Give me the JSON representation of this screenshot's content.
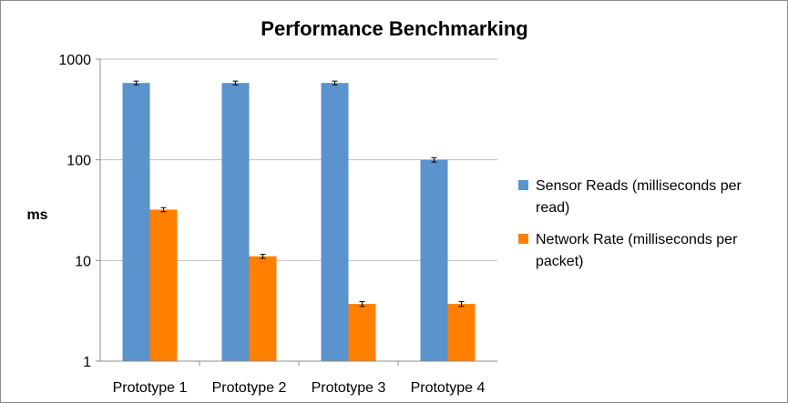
{
  "chart_data": {
    "type": "bar",
    "title": "Performance Benchmarking",
    "xlabel": "",
    "ylabel": "ms",
    "y_scale": "log",
    "ylim": [
      1,
      1000
    ],
    "yticks": [
      "1",
      "10",
      "100",
      "1000"
    ],
    "categories": [
      "Prototype 1",
      "Prototype 2",
      "Prototype 3",
      "Prototype 4"
    ],
    "series": [
      {
        "name": "Sensor Reads (milliseconds per read)",
        "legend_lines": [
          "Sensor Reads (milliseconds per",
          "read)"
        ],
        "color": "#5b93cd",
        "values": [
          580,
          580,
          580,
          100
        ],
        "error": [
          25,
          25,
          25,
          5
        ]
      },
      {
        "name": "Network Rate (milliseconds per packet)",
        "legend_lines": [
          "Network Rate (milliseconds per",
          "packet)"
        ],
        "color": "#ff7f00",
        "values": [
          32,
          11,
          3.7,
          3.7
        ],
        "error": [
          1.5,
          0.5,
          0.2,
          0.2
        ]
      }
    ],
    "grid": true,
    "legend_position": "right"
  }
}
